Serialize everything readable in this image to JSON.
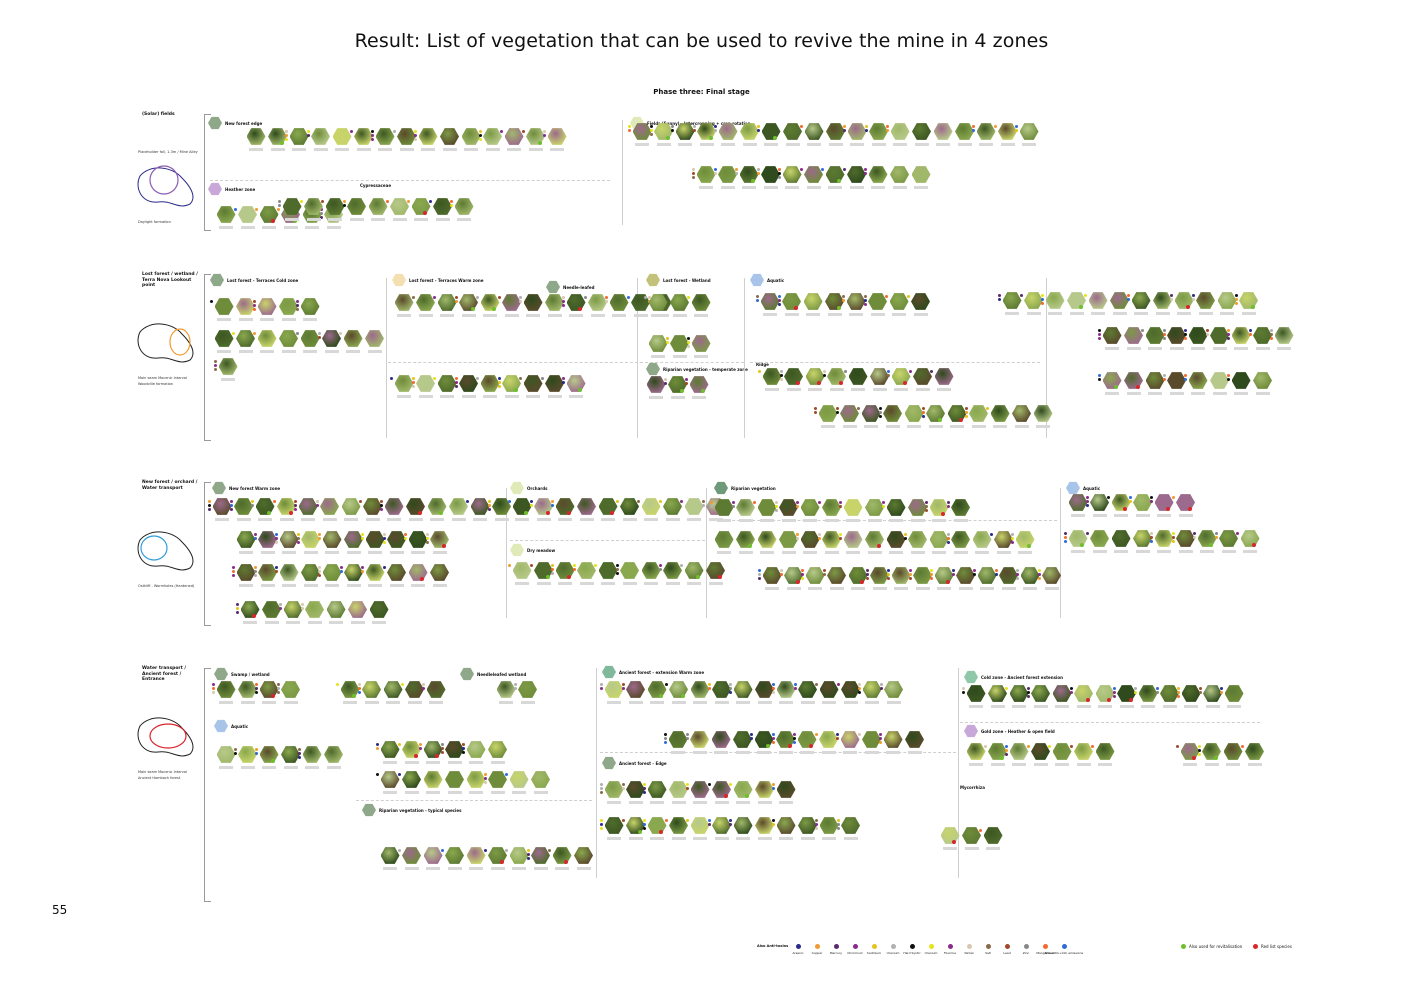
{
  "title": "Result: List of vegetation that can be used to revive the mine  in 4 zones",
  "subtitle": "Phase three:  Final stage",
  "page_number": "55",
  "colors": {
    "plant_palette": [
      "#4f6b2c",
      "#6f8c3a",
      "#3d5722",
      "#8aa84e",
      "#5d7a32",
      "#a1b86a",
      "#2f4a1c",
      "#7c9a45",
      "#b7c98a",
      "#5a4a2c",
      "#9c6a8c",
      "#c8d46a"
    ],
    "green_dot": "#6fbf2c",
    "red_dot": "#d8262b"
  },
  "zones": [
    {
      "name": "(Solar) fields",
      "notes": [
        "Placeholder fall, 1-3m / Mine Alley",
        "Daylight formation"
      ],
      "map_colors": [
        "#2b2b8a",
        "#8b5bb5"
      ],
      "sections": [
        {
          "label": "New forest edge",
          "color": "#8fa88a"
        },
        {
          "label": "Heather zone",
          "color": "#c8a8d8"
        },
        {
          "label": "Cypressaceae",
          "color": ""
        },
        {
          "label": "Fields (Sunny) - Intercropping + crop rotation",
          "color": "#dfeab8"
        }
      ]
    },
    {
      "name": "Lost forest / wetland / Terra Nova Lookout point",
      "notes": [
        "Main seam Mocenic Interval",
        "Woodville formation"
      ],
      "map_colors": [
        "#222222",
        "#f29a2e"
      ],
      "sections": [
        {
          "label": "Lost forest - Terraces   Cold zone",
          "color": "#8fa88a"
        },
        {
          "label": "Lost forest - Terraces   Warm zone",
          "color": "#f5dfb0"
        },
        {
          "label": "Lost forest - Wetland",
          "color": "#c2c27a"
        },
        {
          "label": "Aquatic",
          "color": "#a8c4e8"
        },
        {
          "label": "Needle-leafed",
          "color": "#8fa88a"
        },
        {
          "label": "Riparian vegetation - temperate zone",
          "color": "#8fa88a"
        },
        {
          "label": "Ridge",
          "color": ""
        }
      ]
    },
    {
      "name": "New forest / orchard / Water transport",
      "notes": [
        "Ostkliff - Wormholes (Hardened)"
      ],
      "map_colors": [
        "#222222",
        "#2f9ad8"
      ],
      "sections": [
        {
          "label": "New forest   Warm zone",
          "color": "#8fa88a"
        },
        {
          "label": "Orchards",
          "color": "#dfeab8"
        },
        {
          "label": "Riparian vegetation",
          "color": "#6f9a7a"
        },
        {
          "label": "Aquatic",
          "color": "#a8c4e8"
        },
        {
          "label": "Dry meadow",
          "color": "#dfeab8"
        }
      ]
    },
    {
      "name": "Water transport / Ancient forest / Entrance",
      "notes": [
        "Main seam Mocenic Interval",
        "Ancient Hambach forest"
      ],
      "map_colors": [
        "#222222",
        "#d8262b"
      ],
      "sections": [
        {
          "label": "Swamp / wetland",
          "color": "#8fa88a"
        },
        {
          "label": "Needleleafed wetland",
          "color": "#8fa88a"
        },
        {
          "label": "Aquatic",
          "color": "#a8c4e8"
        },
        {
          "label": "Ancient forest - extension Warm zone",
          "color": "#7fb89a"
        },
        {
          "label": "Ancient forest - Edge",
          "color": "#8fa88a"
        },
        {
          "label": "Riparian vegetation - typical species",
          "color": "#8fa88a"
        },
        {
          "label": "Cold zone - Ancient forest extension",
          "color": "#8fc8a8"
        },
        {
          "label": "Gold zone - Heather & open field",
          "color": "#c8a8d8"
        },
        {
          "label": "Mycorrhiza",
          "color": ""
        }
      ]
    }
  ],
  "legend": {
    "title": "Also Anti-toxins",
    "items": [
      {
        "label": "Arsenic",
        "color": "#2b2b8a"
      },
      {
        "label": "Copper",
        "color": "#f29a2e"
      },
      {
        "label": "Mercury",
        "color": "#5a2a6a"
      },
      {
        "label": "Chromium",
        "color": "#8b2a8a"
      },
      {
        "label": "Cadmium",
        "color": "#e8c21a"
      },
      {
        "label": "Uranium",
        "color": "#b0b0b0"
      },
      {
        "label": "Hard Syntic",
        "color": "#111111"
      },
      {
        "label": "Uranium",
        "color": "#e8e21a"
      },
      {
        "label": "Fluorine",
        "color": "#8b2a8a"
      },
      {
        "label": "Nickel",
        "color": "#d8c8b0"
      },
      {
        "label": "Salt",
        "color": "#8a6a4a"
      },
      {
        "label": "Lead",
        "color": "#a04a2a"
      },
      {
        "label": "Zinc",
        "color": "#888888"
      },
      {
        "label": "Manganese",
        "color": "#f26a2e"
      },
      {
        "label": "NO₃+NO₂+CO₂ emissions",
        "color": "#2f6ad8"
      }
    ],
    "extra": [
      {
        "label": "Also used for revitalisation",
        "color": "#6fbf2c"
      },
      {
        "label": "Red list species",
        "color": "#d8262b"
      }
    ]
  }
}
